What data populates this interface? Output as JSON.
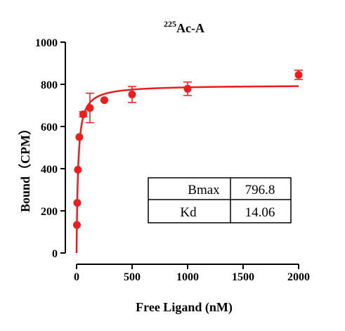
{
  "chart_data": {
    "type": "scatter",
    "title_sup": "225",
    "title_main": "Ac-A",
    "xlabel": "Free Ligand (nM)",
    "ylabel": "Bound（CPM）",
    "xlim": [
      0,
      2000
    ],
    "ylim": [
      0,
      1000
    ],
    "xticks": [
      0,
      500,
      1000,
      1500,
      2000
    ],
    "yticks": [
      0,
      200,
      400,
      600,
      800,
      1000
    ],
    "xtick_labels": [
      "0",
      "500",
      "1000",
      "1500",
      "2000"
    ],
    "ytick_labels": [
      "0",
      "200",
      "400",
      "600",
      "800",
      "1000"
    ],
    "grid": false,
    "color": "#ee1c1c",
    "points": [
      {
        "x": 3,
        "y": 133,
        "err": 0
      },
      {
        "x": 6,
        "y": 238,
        "err": 0
      },
      {
        "x": 12,
        "y": 395,
        "err": 0
      },
      {
        "x": 25,
        "y": 550,
        "err": 0
      },
      {
        "x": 60,
        "y": 658,
        "err": 12
      },
      {
        "x": 120,
        "y": 688,
        "err": 70
      },
      {
        "x": 250,
        "y": 725,
        "err": 0
      },
      {
        "x": 500,
        "y": 752,
        "err": 38
      },
      {
        "x": 1000,
        "y": 779,
        "err": 32
      },
      {
        "x": 2000,
        "y": 845,
        "err": 22
      }
    ],
    "fit": {
      "model": "one-site specific binding",
      "Bmax": 796.8,
      "Kd": 14.06
    },
    "table": [
      {
        "label": "Bmax",
        "value": "796.8"
      },
      {
        "label": "Kd",
        "value": "14.06"
      }
    ]
  }
}
